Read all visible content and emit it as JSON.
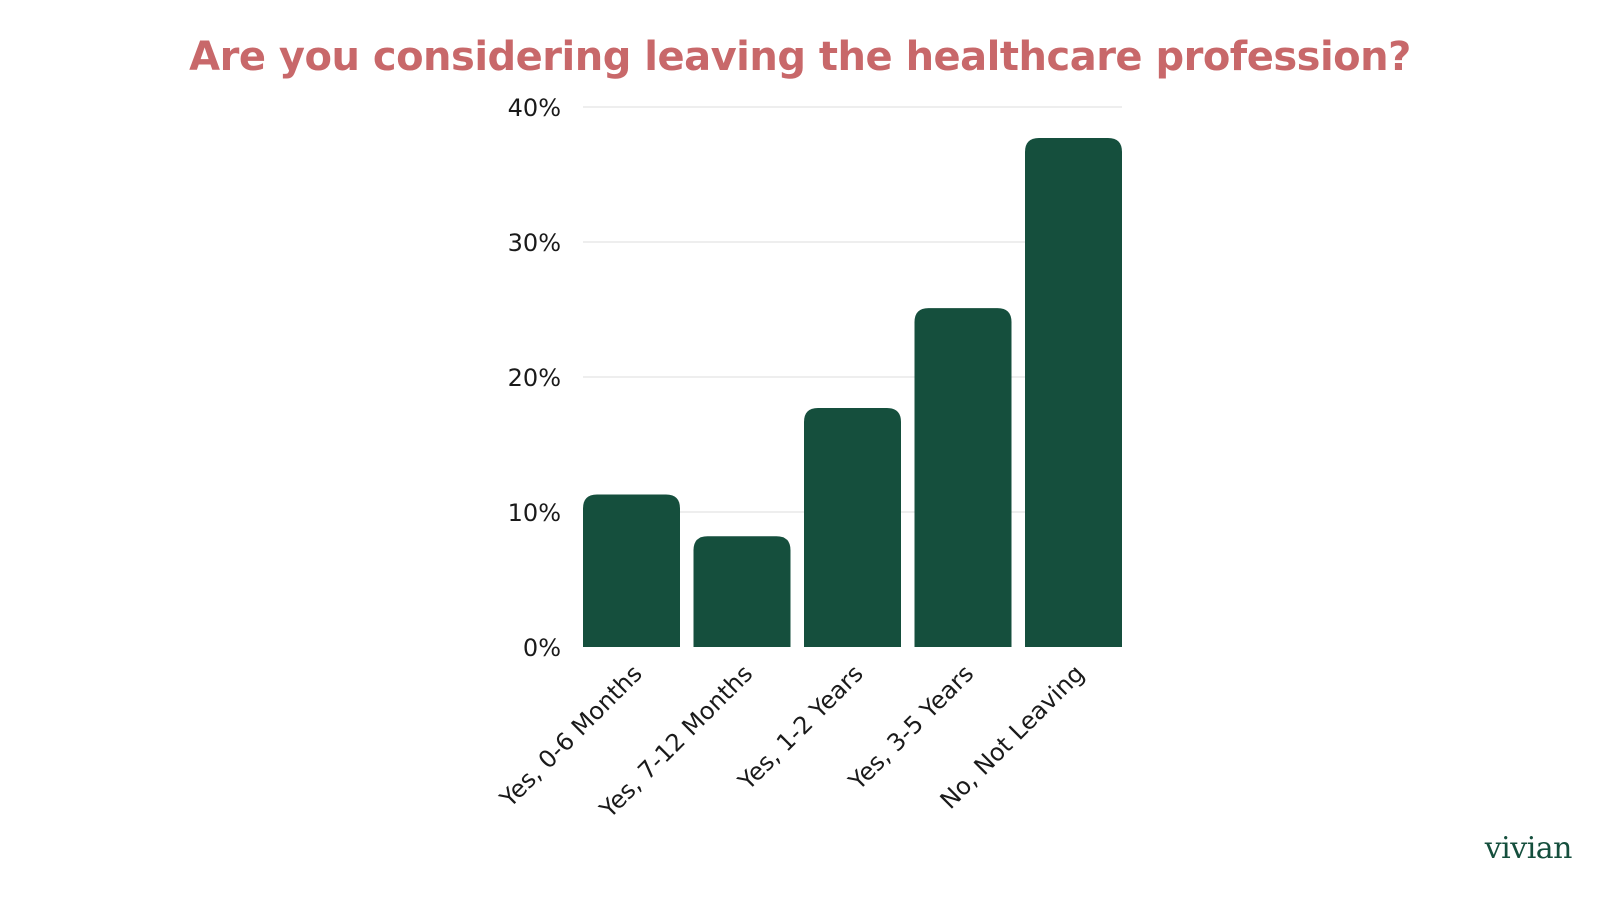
{
  "colors": {
    "title": "#c8686a",
    "bar": "#154f3d",
    "brand": "#154f3d"
  },
  "brand": {
    "logo_text": "vivian"
  },
  "chart_data": {
    "type": "bar",
    "title": "Are you considering leaving the healthcare profession?",
    "xlabel": "",
    "ylabel": "",
    "categories": [
      "Yes, 0-6 Months",
      "Yes, 7-12 Months",
      "Yes, 1-2 Years",
      "Yes, 3-5 Years",
      "No, Not Leaving"
    ],
    "values": [
      11.3,
      8.2,
      17.7,
      25.1,
      37.7
    ],
    "ylim": [
      0,
      40
    ],
    "yticks": [
      0,
      10,
      20,
      30,
      40
    ],
    "ytick_labels": [
      "0%",
      "10%",
      "20%",
      "30%",
      "40%"
    ],
    "grid": true,
    "legend": "none"
  }
}
